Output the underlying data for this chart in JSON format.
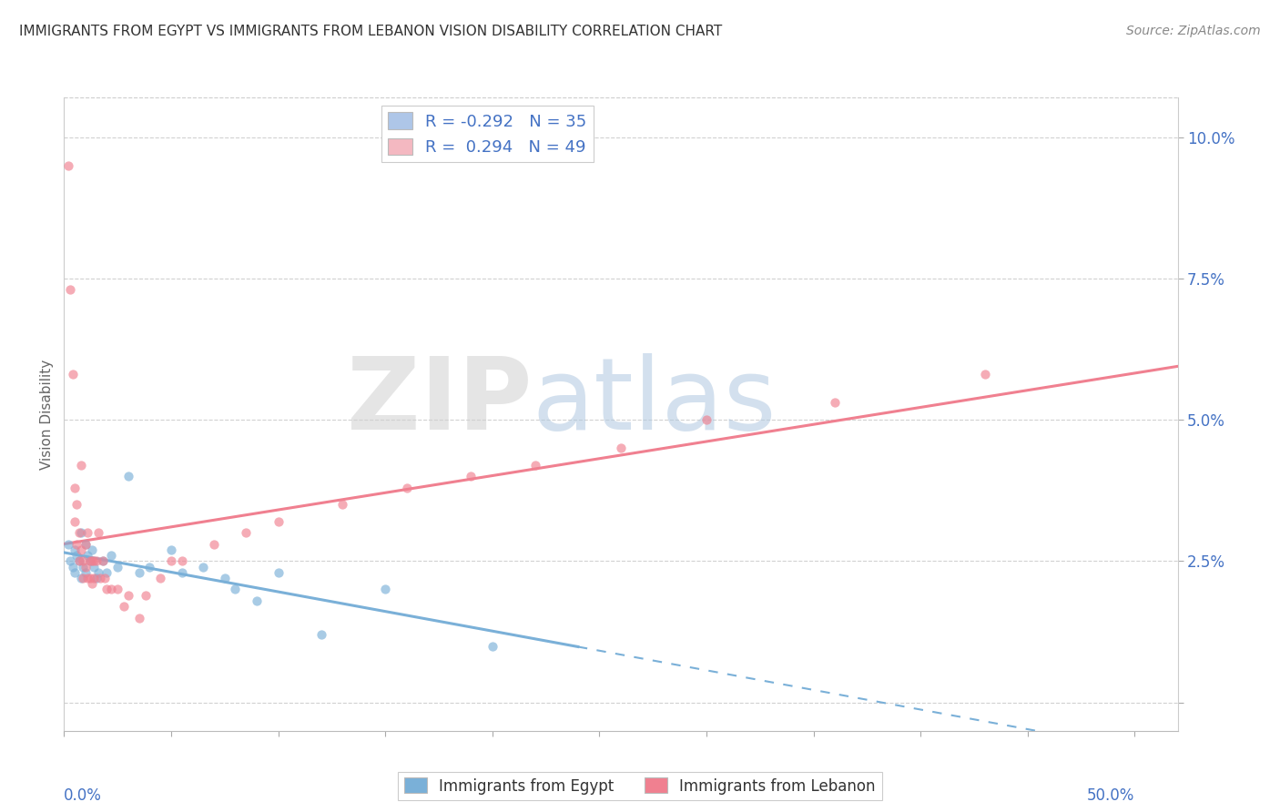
{
  "title": "IMMIGRANTS FROM EGYPT VS IMMIGRANTS FROM LEBANON VISION DISABILITY CORRELATION CHART",
  "source": "Source: ZipAtlas.com",
  "ylabel": "Vision Disability",
  "yticks": [
    0.0,
    0.025,
    0.05,
    0.075,
    0.1
  ],
  "ytick_labels": [
    "",
    "2.5%",
    "5.0%",
    "7.5%",
    "10.0%"
  ],
  "xtick_vals": [
    0.0,
    0.05,
    0.1,
    0.15,
    0.2,
    0.25,
    0.3,
    0.35,
    0.4,
    0.45,
    0.5
  ],
  "xlim": [
    0.0,
    0.52
  ],
  "ylim": [
    -0.005,
    0.107
  ],
  "legend_entries": [
    {
      "label": "R = -0.292   N = 35",
      "color": "#aec6e8"
    },
    {
      "label": "R =  0.294   N = 49",
      "color": "#f4b8c1"
    }
  ],
  "egypt_color": "#7ab0d8",
  "lebanon_color": "#f08090",
  "watermark_zip": "ZIP",
  "watermark_atlas": "atlas",
  "watermark_zip_color": "#d0d0d0",
  "watermark_atlas_color": "#b0c8e0",
  "background_color": "#ffffff",
  "egypt_points": [
    [
      0.002,
      0.028
    ],
    [
      0.003,
      0.025
    ],
    [
      0.004,
      0.024
    ],
    [
      0.005,
      0.027
    ],
    [
      0.005,
      0.023
    ],
    [
      0.006,
      0.026
    ],
    [
      0.007,
      0.025
    ],
    [
      0.008,
      0.022
    ],
    [
      0.008,
      0.03
    ],
    [
      0.009,
      0.024
    ],
    [
      0.01,
      0.028
    ],
    [
      0.01,
      0.023
    ],
    [
      0.011,
      0.026
    ],
    [
      0.012,
      0.025
    ],
    [
      0.013,
      0.027
    ],
    [
      0.014,
      0.024
    ],
    [
      0.015,
      0.022
    ],
    [
      0.016,
      0.023
    ],
    [
      0.018,
      0.025
    ],
    [
      0.02,
      0.023
    ],
    [
      0.022,
      0.026
    ],
    [
      0.025,
      0.024
    ],
    [
      0.03,
      0.04
    ],
    [
      0.035,
      0.023
    ],
    [
      0.04,
      0.024
    ],
    [
      0.05,
      0.027
    ],
    [
      0.055,
      0.023
    ],
    [
      0.065,
      0.024
    ],
    [
      0.075,
      0.022
    ],
    [
      0.08,
      0.02
    ],
    [
      0.09,
      0.018
    ],
    [
      0.1,
      0.023
    ],
    [
      0.12,
      0.012
    ],
    [
      0.15,
      0.02
    ],
    [
      0.2,
      0.01
    ]
  ],
  "lebanon_points": [
    [
      0.002,
      0.095
    ],
    [
      0.003,
      0.073
    ],
    [
      0.004,
      0.058
    ],
    [
      0.005,
      0.038
    ],
    [
      0.005,
      0.032
    ],
    [
      0.006,
      0.035
    ],
    [
      0.006,
      0.028
    ],
    [
      0.007,
      0.03
    ],
    [
      0.007,
      0.025
    ],
    [
      0.008,
      0.042
    ],
    [
      0.008,
      0.027
    ],
    [
      0.009,
      0.025
    ],
    [
      0.009,
      0.022
    ],
    [
      0.01,
      0.028
    ],
    [
      0.01,
      0.024
    ],
    [
      0.011,
      0.022
    ],
    [
      0.011,
      0.03
    ],
    [
      0.012,
      0.025
    ],
    [
      0.012,
      0.022
    ],
    [
      0.013,
      0.025
    ],
    [
      0.013,
      0.021
    ],
    [
      0.014,
      0.022
    ],
    [
      0.014,
      0.025
    ],
    [
      0.015,
      0.025
    ],
    [
      0.016,
      0.03
    ],
    [
      0.017,
      0.022
    ],
    [
      0.018,
      0.025
    ],
    [
      0.019,
      0.022
    ],
    [
      0.02,
      0.02
    ],
    [
      0.022,
      0.02
    ],
    [
      0.025,
      0.02
    ],
    [
      0.028,
      0.017
    ],
    [
      0.03,
      0.019
    ],
    [
      0.035,
      0.015
    ],
    [
      0.038,
      0.019
    ],
    [
      0.045,
      0.022
    ],
    [
      0.05,
      0.025
    ],
    [
      0.055,
      0.025
    ],
    [
      0.07,
      0.028
    ],
    [
      0.085,
      0.03
    ],
    [
      0.1,
      0.032
    ],
    [
      0.13,
      0.035
    ],
    [
      0.16,
      0.038
    ],
    [
      0.19,
      0.04
    ],
    [
      0.22,
      0.042
    ],
    [
      0.26,
      0.045
    ],
    [
      0.3,
      0.05
    ],
    [
      0.36,
      0.053
    ],
    [
      0.43,
      0.058
    ]
  ]
}
